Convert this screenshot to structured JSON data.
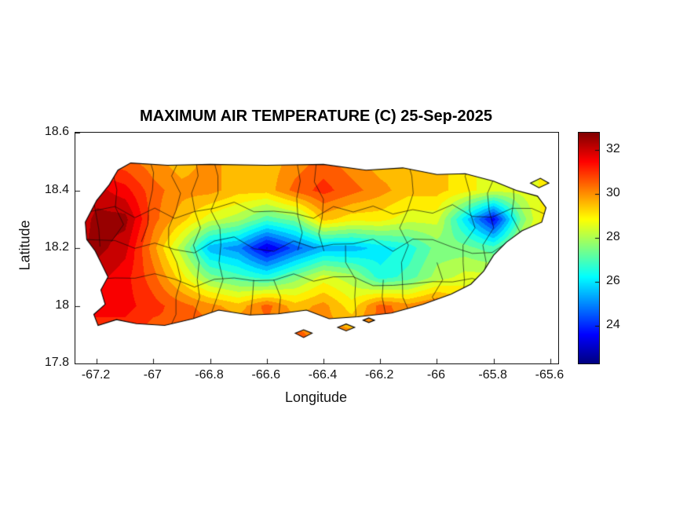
{
  "figure": {
    "title": "MAXIMUM AIR TEMPERATURE (C) 25-Sep-2025",
    "xlabel": "Longitude",
    "ylabel": "Latitude",
    "background": "#ffffff"
  },
  "chart_data": {
    "type": "heatmap",
    "title": "MAXIMUM AIR TEMPERATURE (C) 25-Sep-2025",
    "xlabel": "Longitude",
    "ylabel": "Latitude",
    "units": "C",
    "legend_position": "right-colorbar",
    "grid_lines": false,
    "xlim": [
      -67.275,
      -65.572
    ],
    "ylim": [
      17.8,
      18.6
    ],
    "xticks": {
      "values": [
        -67.2,
        -67.0,
        -66.8,
        -66.6,
        -66.4,
        -66.2,
        -66.0,
        -65.8,
        -65.6
      ],
      "labels": [
        "-67.2",
        "-67",
        "-66.8",
        "-66.6",
        "-66.4",
        "-66.2",
        "-66",
        "-65.8",
        "-65.6"
      ]
    },
    "yticks": {
      "values": [
        18.6,
        18.4,
        18.2,
        18.0,
        17.8
      ],
      "labels": [
        "18.6",
        "18.4",
        "18.2",
        "18",
        "17.8"
      ]
    },
    "colorbar": {
      "colormap": "jet",
      "clim": [
        22.3,
        32.8
      ],
      "tick_values": [
        32,
        30,
        28,
        26,
        24
      ],
      "tick_labels": [
        "32",
        "30",
        "28",
        "26",
        "24"
      ]
    },
    "contour_interval_c": 0.5,
    "temperature_grid": {
      "lons": [
        -67.3,
        -67.2,
        -67.1,
        -67.0,
        -66.9,
        -66.8,
        -66.7,
        -66.6,
        -66.5,
        -66.4,
        -66.3,
        -66.2,
        -66.1,
        -66.0,
        -65.9,
        -65.8,
        -65.7,
        -65.6,
        -65.5
      ],
      "lats": [
        17.9,
        18.0,
        18.1,
        18.2,
        18.3,
        18.4,
        18.5,
        18.6
      ],
      "values_c": [
        [
          31.0,
          31.0,
          31.0,
          30.5,
          31.0,
          30.5,
          30.5,
          30.0,
          30.5,
          30.0,
          30.0,
          30.5,
          30.5,
          30.5,
          30.0,
          30.0,
          29.5,
          29.5,
          29.5
        ],
        [
          31.5,
          31.5,
          31.5,
          31.0,
          30.5,
          30.0,
          29.5,
          30.5,
          29.5,
          30.0,
          29.0,
          30.5,
          30.0,
          30.5,
          29.5,
          29.0,
          29.0,
          29.0,
          29.0
        ],
        [
          31.5,
          32.0,
          31.5,
          30.5,
          29.0,
          27.5,
          27.0,
          26.5,
          27.5,
          28.5,
          28.0,
          26.5,
          27.0,
          28.0,
          28.5,
          28.5,
          29.0,
          29.0,
          29.0
        ],
        [
          32.0,
          32.5,
          32.0,
          30.0,
          28.0,
          25.5,
          25.0,
          23.2,
          24.5,
          25.5,
          25.5,
          26.0,
          26.5,
          27.5,
          27.5,
          27.0,
          28.5,
          30.0,
          30.0
        ],
        [
          31.5,
          32.5,
          32.5,
          30.5,
          29.5,
          28.5,
          28.0,
          27.0,
          27.5,
          29.5,
          29.0,
          29.0,
          28.5,
          28.5,
          26.0,
          23.5,
          27.5,
          29.5,
          29.5
        ],
        [
          31.0,
          32.0,
          31.5,
          30.5,
          30.0,
          30.0,
          29.5,
          29.5,
          30.5,
          31.0,
          30.5,
          30.0,
          29.5,
          29.5,
          29.0,
          28.5,
          28.5,
          29.0,
          29.0
        ],
        [
          30.0,
          30.5,
          30.5,
          30.0,
          29.5,
          30.0,
          29.5,
          29.5,
          30.0,
          30.5,
          30.0,
          29.5,
          29.5,
          29.5,
          29.0,
          28.5,
          28.5,
          29.0,
          29.0
        ],
        [
          29.5,
          30.0,
          30.0,
          29.5,
          29.5,
          29.5,
          29.5,
          29.5,
          29.5,
          30.0,
          29.5,
          29.5,
          29.5,
          29.5,
          29.0,
          28.5,
          28.5,
          29.0,
          29.0
        ]
      ]
    },
    "coastline": {
      "main": [
        [
          -67.24,
          18.29
        ],
        [
          -67.2,
          18.365
        ],
        [
          -67.155,
          18.42
        ],
        [
          -67.125,
          18.47
        ],
        [
          -67.08,
          18.495
        ],
        [
          -66.95,
          18.487
        ],
        [
          -66.8,
          18.49
        ],
        [
          -66.6,
          18.487
        ],
        [
          -66.4,
          18.49
        ],
        [
          -66.25,
          18.47
        ],
        [
          -66.12,
          18.478
        ],
        [
          -66.0,
          18.455
        ],
        [
          -65.9,
          18.458
        ],
        [
          -65.8,
          18.432
        ],
        [
          -65.72,
          18.4
        ],
        [
          -65.645,
          18.38
        ],
        [
          -65.615,
          18.34
        ],
        [
          -65.63,
          18.29
        ],
        [
          -65.7,
          18.26
        ],
        [
          -65.755,
          18.22
        ],
        [
          -65.8,
          18.175
        ],
        [
          -65.835,
          18.12
        ],
        [
          -65.88,
          18.075
        ],
        [
          -65.95,
          18.04
        ],
        [
          -66.05,
          18.005
        ],
        [
          -66.16,
          17.975
        ],
        [
          -66.28,
          17.962
        ],
        [
          -66.38,
          17.955
        ],
        [
          -66.46,
          17.985
        ],
        [
          -66.56,
          17.972
        ],
        [
          -66.66,
          17.968
        ],
        [
          -66.77,
          17.985
        ],
        [
          -66.86,
          17.955
        ],
        [
          -66.96,
          17.932
        ],
        [
          -67.06,
          17.938
        ],
        [
          -67.13,
          17.952
        ],
        [
          -67.195,
          17.932
        ],
        [
          -67.21,
          17.97
        ],
        [
          -67.17,
          18.005
        ],
        [
          -67.185,
          18.055
        ],
        [
          -67.16,
          18.1
        ],
        [
          -67.185,
          18.15
        ],
        [
          -67.205,
          18.19
        ],
        [
          -67.235,
          18.23
        ]
      ],
      "islets": [
        [
          [
            -66.5,
            17.905
          ],
          [
            -66.47,
            17.917
          ],
          [
            -66.44,
            17.905
          ],
          [
            -66.47,
            17.89
          ]
        ],
        [
          [
            -66.35,
            17.925
          ],
          [
            -66.32,
            17.937
          ],
          [
            -66.29,
            17.925
          ],
          [
            -66.32,
            17.913
          ]
        ],
        [
          [
            -66.26,
            17.95
          ],
          [
            -66.24,
            17.958
          ],
          [
            -66.22,
            17.95
          ],
          [
            -66.24,
            17.942
          ]
        ],
        [
          [
            -65.67,
            18.425
          ],
          [
            -65.635,
            18.442
          ],
          [
            -65.605,
            18.425
          ],
          [
            -65.64,
            18.409
          ]
        ]
      ]
    },
    "municipality_lines": {
      "seed": 11,
      "vertical_spacing_deg": 0.085,
      "horizontal_lats": [
        18.09,
        18.21,
        18.33
      ]
    }
  }
}
